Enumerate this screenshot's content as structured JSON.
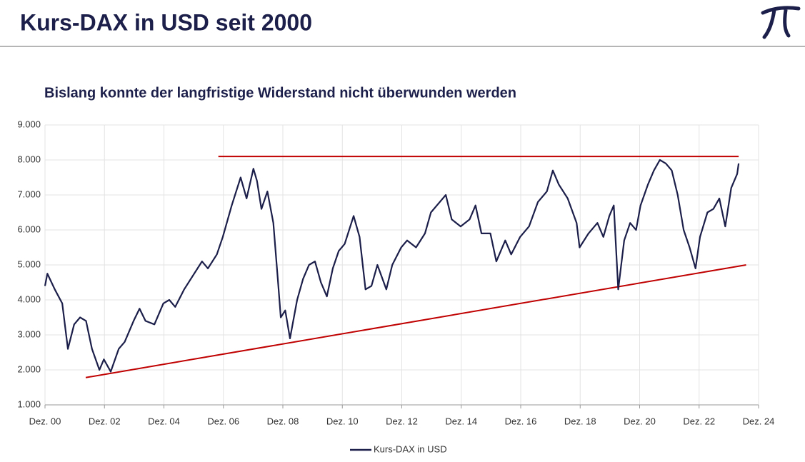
{
  "chart_data": {
    "type": "line",
    "title": "Kurs-DAX in USD seit 2000",
    "subtitle": "Bislang konnte der langfristige Widerstand nicht überwunden werden",
    "x": [
      2000.92,
      2001.0,
      2001.25,
      2001.5,
      2001.69,
      2001.9,
      2002.1,
      2002.3,
      2002.5,
      2002.75,
      2002.9,
      2003.13,
      2003.4,
      2003.6,
      2003.9,
      2004.1,
      2004.3,
      2004.6,
      2004.9,
      2005.1,
      2005.3,
      2005.6,
      2005.9,
      2006.2,
      2006.4,
      2006.7,
      2006.9,
      2007.2,
      2007.5,
      2007.7,
      2007.93,
      2008.05,
      2008.2,
      2008.4,
      2008.6,
      2008.75,
      2008.85,
      2009.0,
      2009.16,
      2009.4,
      2009.6,
      2009.8,
      2010.0,
      2010.2,
      2010.4,
      2010.6,
      2010.8,
      2011.0,
      2011.3,
      2011.5,
      2011.7,
      2011.9,
      2012.1,
      2012.4,
      2012.6,
      2012.9,
      2013.1,
      2013.4,
      2013.7,
      2013.9,
      2014.1,
      2014.4,
      2014.6,
      2014.9,
      2015.2,
      2015.4,
      2015.6,
      2015.9,
      2016.1,
      2016.4,
      2016.6,
      2016.9,
      2017.2,
      2017.5,
      2017.8,
      2018.0,
      2018.2,
      2018.5,
      2018.8,
      2018.9,
      2019.2,
      2019.5,
      2019.7,
      2019.9,
      2020.05,
      2020.2,
      2020.4,
      2020.6,
      2020.8,
      2020.95,
      2021.2,
      2021.4,
      2021.6,
      2021.8,
      2022.0,
      2022.2,
      2022.4,
      2022.6,
      2022.8,
      2022.95,
      2023.2,
      2023.4,
      2023.6,
      2023.8,
      2024.0,
      2024.2,
      2024.25
    ],
    "series": [
      {
        "name": "Kurs-DAX in USD",
        "color": "#1c1f4a",
        "values": [
          4400,
          4750,
          4300,
          3900,
          2600,
          3300,
          3500,
          3400,
          2600,
          2000,
          2300,
          1950,
          2600,
          2800,
          3400,
          3750,
          3400,
          3300,
          3900,
          4000,
          3800,
          4300,
          4700,
          5100,
          4900,
          5300,
          5800,
          6700,
          7500,
          6900,
          7750,
          7400,
          6600,
          7100,
          6200,
          4600,
          3500,
          3700,
          2900,
          4000,
          4600,
          5000,
          5100,
          4500,
          4100,
          4900,
          5400,
          5600,
          6400,
          5800,
          4300,
          4400,
          5000,
          4300,
          5000,
          5500,
          5700,
          5500,
          5900,
          6500,
          6700,
          7000,
          6300,
          6100,
          6300,
          6700,
          5900,
          5900,
          5100,
          5700,
          5300,
          5800,
          6100,
          6800,
          7100,
          7700,
          7300,
          6900,
          6200,
          5500,
          5900,
          6200,
          5800,
          6400,
          6700,
          4300,
          5700,
          6200,
          6000,
          6700,
          7300,
          7700,
          8000,
          7900,
          7700,
          7000,
          6000,
          5500,
          4900,
          5800,
          6500,
          6600,
          6900,
          6100,
          7200,
          7600,
          7900
        ]
      }
    ],
    "trend_lines": [
      {
        "color": "#c00000",
        "x": [
          2006.75,
          2024.25
        ],
        "values": [
          8100,
          8100
        ]
      },
      {
        "color": "#c00000",
        "x": [
          2002.29,
          2024.5
        ],
        "values": [
          1780,
          5000
        ]
      }
    ],
    "xlim": [
      2000.92,
      2024.92
    ],
    "xticks": [
      {
        "value": 2000.92,
        "label": "Dez. 00"
      },
      {
        "value": 2002.92,
        "label": "Dez. 02"
      },
      {
        "value": 2004.92,
        "label": "Dez. 04"
      },
      {
        "value": 2006.92,
        "label": "Dez. 06"
      },
      {
        "value": 2008.92,
        "label": "Dez. 08"
      },
      {
        "value": 2010.92,
        "label": "Dez. 10"
      },
      {
        "value": 2012.92,
        "label": "Dez. 12"
      },
      {
        "value": 2014.92,
        "label": "Dez. 14"
      },
      {
        "value": 2016.92,
        "label": "Dez. 16"
      },
      {
        "value": 2018.92,
        "label": "Dez. 18"
      },
      {
        "value": 2020.92,
        "label": "Dez. 20"
      },
      {
        "value": 2022.92,
        "label": "Dez. 22"
      },
      {
        "value": 2024.92,
        "label": "Dez. 24"
      }
    ],
    "ylim": [
      1000,
      9000
    ],
    "yticks": [
      {
        "value": 1000,
        "label": "1.000"
      },
      {
        "value": 2000,
        "label": "2.000"
      },
      {
        "value": 3000,
        "label": "3.000"
      },
      {
        "value": 4000,
        "label": "4.000"
      },
      {
        "value": 5000,
        "label": "5.000"
      },
      {
        "value": 6000,
        "label": "6.000"
      },
      {
        "value": 7000,
        "label": "7.000"
      },
      {
        "value": 8000,
        "label": "8.000"
      },
      {
        "value": 9000,
        "label": "9.000"
      }
    ],
    "grid": true,
    "legend": "bottom"
  }
}
